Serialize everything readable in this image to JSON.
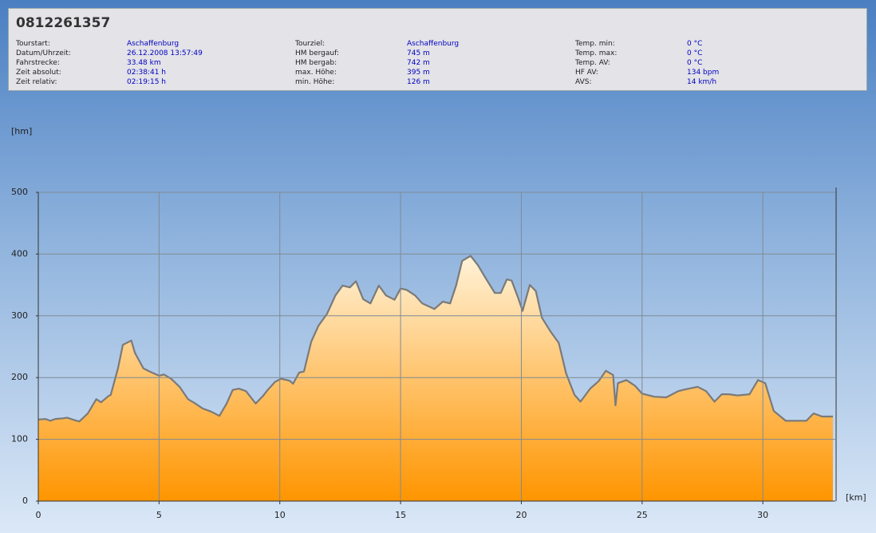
{
  "header": {
    "title": "0812261357",
    "columns": [
      [
        {
          "label": "Tourstart:",
          "value": "Aschaffenburg"
        },
        {
          "label": "Datum/Uhrzeit:",
          "value": "26.12.2008 13:57:49"
        },
        {
          "label": "Fahrstrecke:",
          "value": "33.48 km"
        },
        {
          "label": "Zeit absolut:",
          "value": "02:38:41 h"
        },
        {
          "label": "Zeit relativ:",
          "value": "02:19:15 h"
        }
      ],
      [
        {
          "label": "Tourziel:",
          "value": "Aschaffenburg"
        },
        {
          "label": "HM bergauf:",
          "value": "745 m"
        },
        {
          "label": "HM bergab:",
          "value": "742 m"
        },
        {
          "label": "max. Höhe:",
          "value": "395 m"
        },
        {
          "label": "min. Höhe:",
          "value": "126 m"
        }
      ],
      [
        {
          "label": "Temp. min:",
          "value": "0 °C"
        },
        {
          "label": "Temp. max:",
          "value": "0 °C"
        },
        {
          "label": "Temp. AV:",
          "value": "0 °C"
        },
        {
          "label": "HF AV:",
          "value": "134 bpm"
        },
        {
          "label": "AVS:",
          "value": "14 km/h"
        }
      ]
    ]
  },
  "chart_data": {
    "type": "area",
    "y_label": "[hm]",
    "x_label": "[km]",
    "xlim": [
      0,
      33
    ],
    "ylim": [
      0,
      500
    ],
    "xticks": [
      0,
      5,
      10,
      15,
      20,
      25,
      30
    ],
    "yticks": [
      0,
      100,
      200,
      300,
      400,
      500
    ],
    "grid": true,
    "series": [
      {
        "color": "#7a7a7a",
        "x": [
          0,
          0.3,
          0.5,
          0.7,
          1.0,
          1.2,
          1.5,
          1.7,
          2.05,
          2.4,
          2.6,
          2.9,
          3.0,
          3.3,
          3.5,
          3.85,
          4.0,
          4.35,
          4.6,
          5.0,
          5.2,
          5.5,
          5.85,
          6.2,
          6.5,
          6.8,
          7.15,
          7.5,
          7.8,
          8.05,
          8.3,
          8.6,
          9.0,
          9.3,
          9.5,
          9.8,
          10.05,
          10.4,
          10.55,
          10.8,
          11.0,
          11.3,
          11.6,
          11.95,
          12.3,
          12.6,
          12.9,
          13.15,
          13.45,
          13.75,
          14.1,
          14.4,
          14.75,
          15.0,
          15.25,
          15.6,
          15.9,
          16.4,
          16.75,
          17.05,
          17.3,
          17.55,
          17.9,
          18.2,
          18.55,
          18.9,
          19.15,
          19.4,
          19.6,
          19.85,
          20.05,
          20.35,
          20.6,
          20.85,
          21.2,
          21.55,
          21.85,
          22.2,
          22.45,
          22.85,
          23.2,
          23.5,
          23.8,
          23.9,
          24.0,
          24.35,
          24.7,
          25.0,
          25.5,
          26.0,
          26.5,
          26.8,
          27.3,
          27.65,
          28.0,
          28.3,
          28.6,
          28.95,
          29.45,
          29.8,
          30.1,
          30.45,
          30.95,
          31.45,
          31.8,
          32.1,
          32.45,
          32.9
        ],
        "values": [
          132,
          133,
          130,
          133,
          134,
          135,
          131,
          129,
          142,
          165,
          160,
          170,
          172,
          215,
          253,
          260,
          240,
          215,
          210,
          203,
          205,
          198,
          185,
          165,
          158,
          150,
          145,
          138,
          158,
          180,
          182,
          178,
          158,
          170,
          180,
          193,
          198,
          195,
          190,
          208,
          210,
          258,
          284,
          303,
          333,
          349,
          346,
          356,
          327,
          320,
          349,
          333,
          326,
          344,
          342,
          333,
          320,
          311,
          323,
          320,
          349,
          389,
          397,
          382,
          359,
          337,
          337,
          359,
          357,
          331,
          308,
          350,
          340,
          297,
          275,
          256,
          207,
          172,
          161,
          182,
          194,
          211,
          204,
          155,
          191,
          196,
          187,
          174,
          169,
          168,
          178,
          181,
          185,
          178,
          161,
          173,
          173,
          171,
          173,
          196,
          191,
          146,
          130,
          130,
          130,
          142,
          137,
          137
        ]
      }
    ]
  }
}
